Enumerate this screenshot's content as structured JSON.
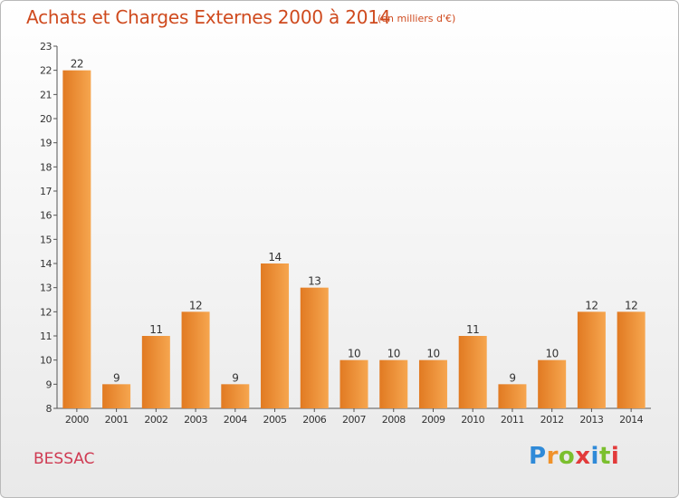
{
  "header": {
    "title": "Achats et Charges Externes 2000 à 2014",
    "subtitle": "(en milliers d'€)"
  },
  "commune": "BESSAC",
  "logo": {
    "letters": [
      "P",
      "r",
      "o",
      "x",
      "i",
      "t",
      "i"
    ],
    "colors": [
      "#2f8ad8",
      "#f0922a",
      "#7bbf2e",
      "#e23a3a",
      "#2f8ad8",
      "#7bbf2e",
      "#e23a3a"
    ]
  },
  "colors": {
    "bar_light": "#f6a64f",
    "bar_dark": "#e17a22",
    "text": "#333333",
    "title": "#cf4a1e"
  },
  "chart_data": {
    "type": "bar",
    "categories": [
      "2000",
      "2001",
      "2002",
      "2003",
      "2004",
      "2005",
      "2006",
      "2007",
      "2008",
      "2009",
      "2010",
      "2011",
      "2012",
      "2013",
      "2014"
    ],
    "values": [
      22,
      9,
      11,
      12,
      9,
      14,
      13,
      10,
      10,
      10,
      11,
      9,
      10,
      12,
      12
    ],
    "ylim": [
      8,
      23
    ],
    "yticks": [
      8,
      9,
      10,
      11,
      12,
      13,
      14,
      15,
      16,
      17,
      18,
      19,
      20,
      21,
      22,
      23
    ],
    "grid": false,
    "data_labels": true
  }
}
